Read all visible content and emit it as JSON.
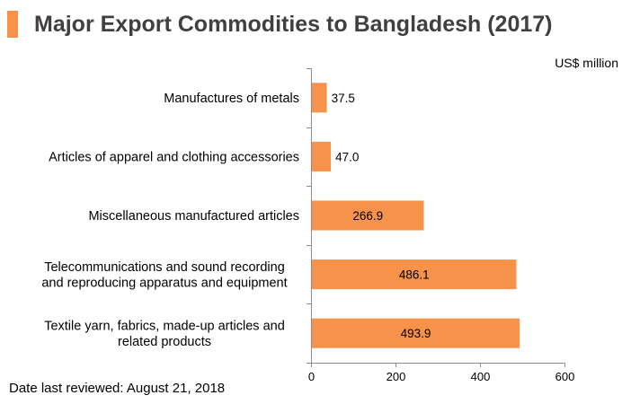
{
  "title": "Major Export Commodities to Bangladesh (2017)",
  "unit_label": "US$ million",
  "footnote": "Date last reviewed: August 21, 2018",
  "colors": {
    "accent": "#f7924a",
    "bar": "#f7924a",
    "title": "#404040"
  },
  "chart_data": {
    "type": "bar",
    "orientation": "horizontal",
    "categories": [
      [
        "Manufactures of metals"
      ],
      [
        "Articles of apparel and clothing accessories"
      ],
      [
        "Miscellaneous manufactured articles"
      ],
      [
        "Telecommunications and sound recording",
        "and reproducing apparatus and equipment"
      ],
      [
        "Textile yarn, fabrics, made-up articles and",
        "related products"
      ]
    ],
    "values": [
      37.5,
      47.0,
      266.9,
      486.1,
      493.9
    ],
    "value_labels": [
      "37.5",
      "47.0",
      "266.9",
      "486.1",
      "493.9"
    ],
    "xlim": [
      0,
      600
    ],
    "xticks": [
      0,
      200,
      400,
      600
    ],
    "grid": false,
    "legend": "none"
  }
}
